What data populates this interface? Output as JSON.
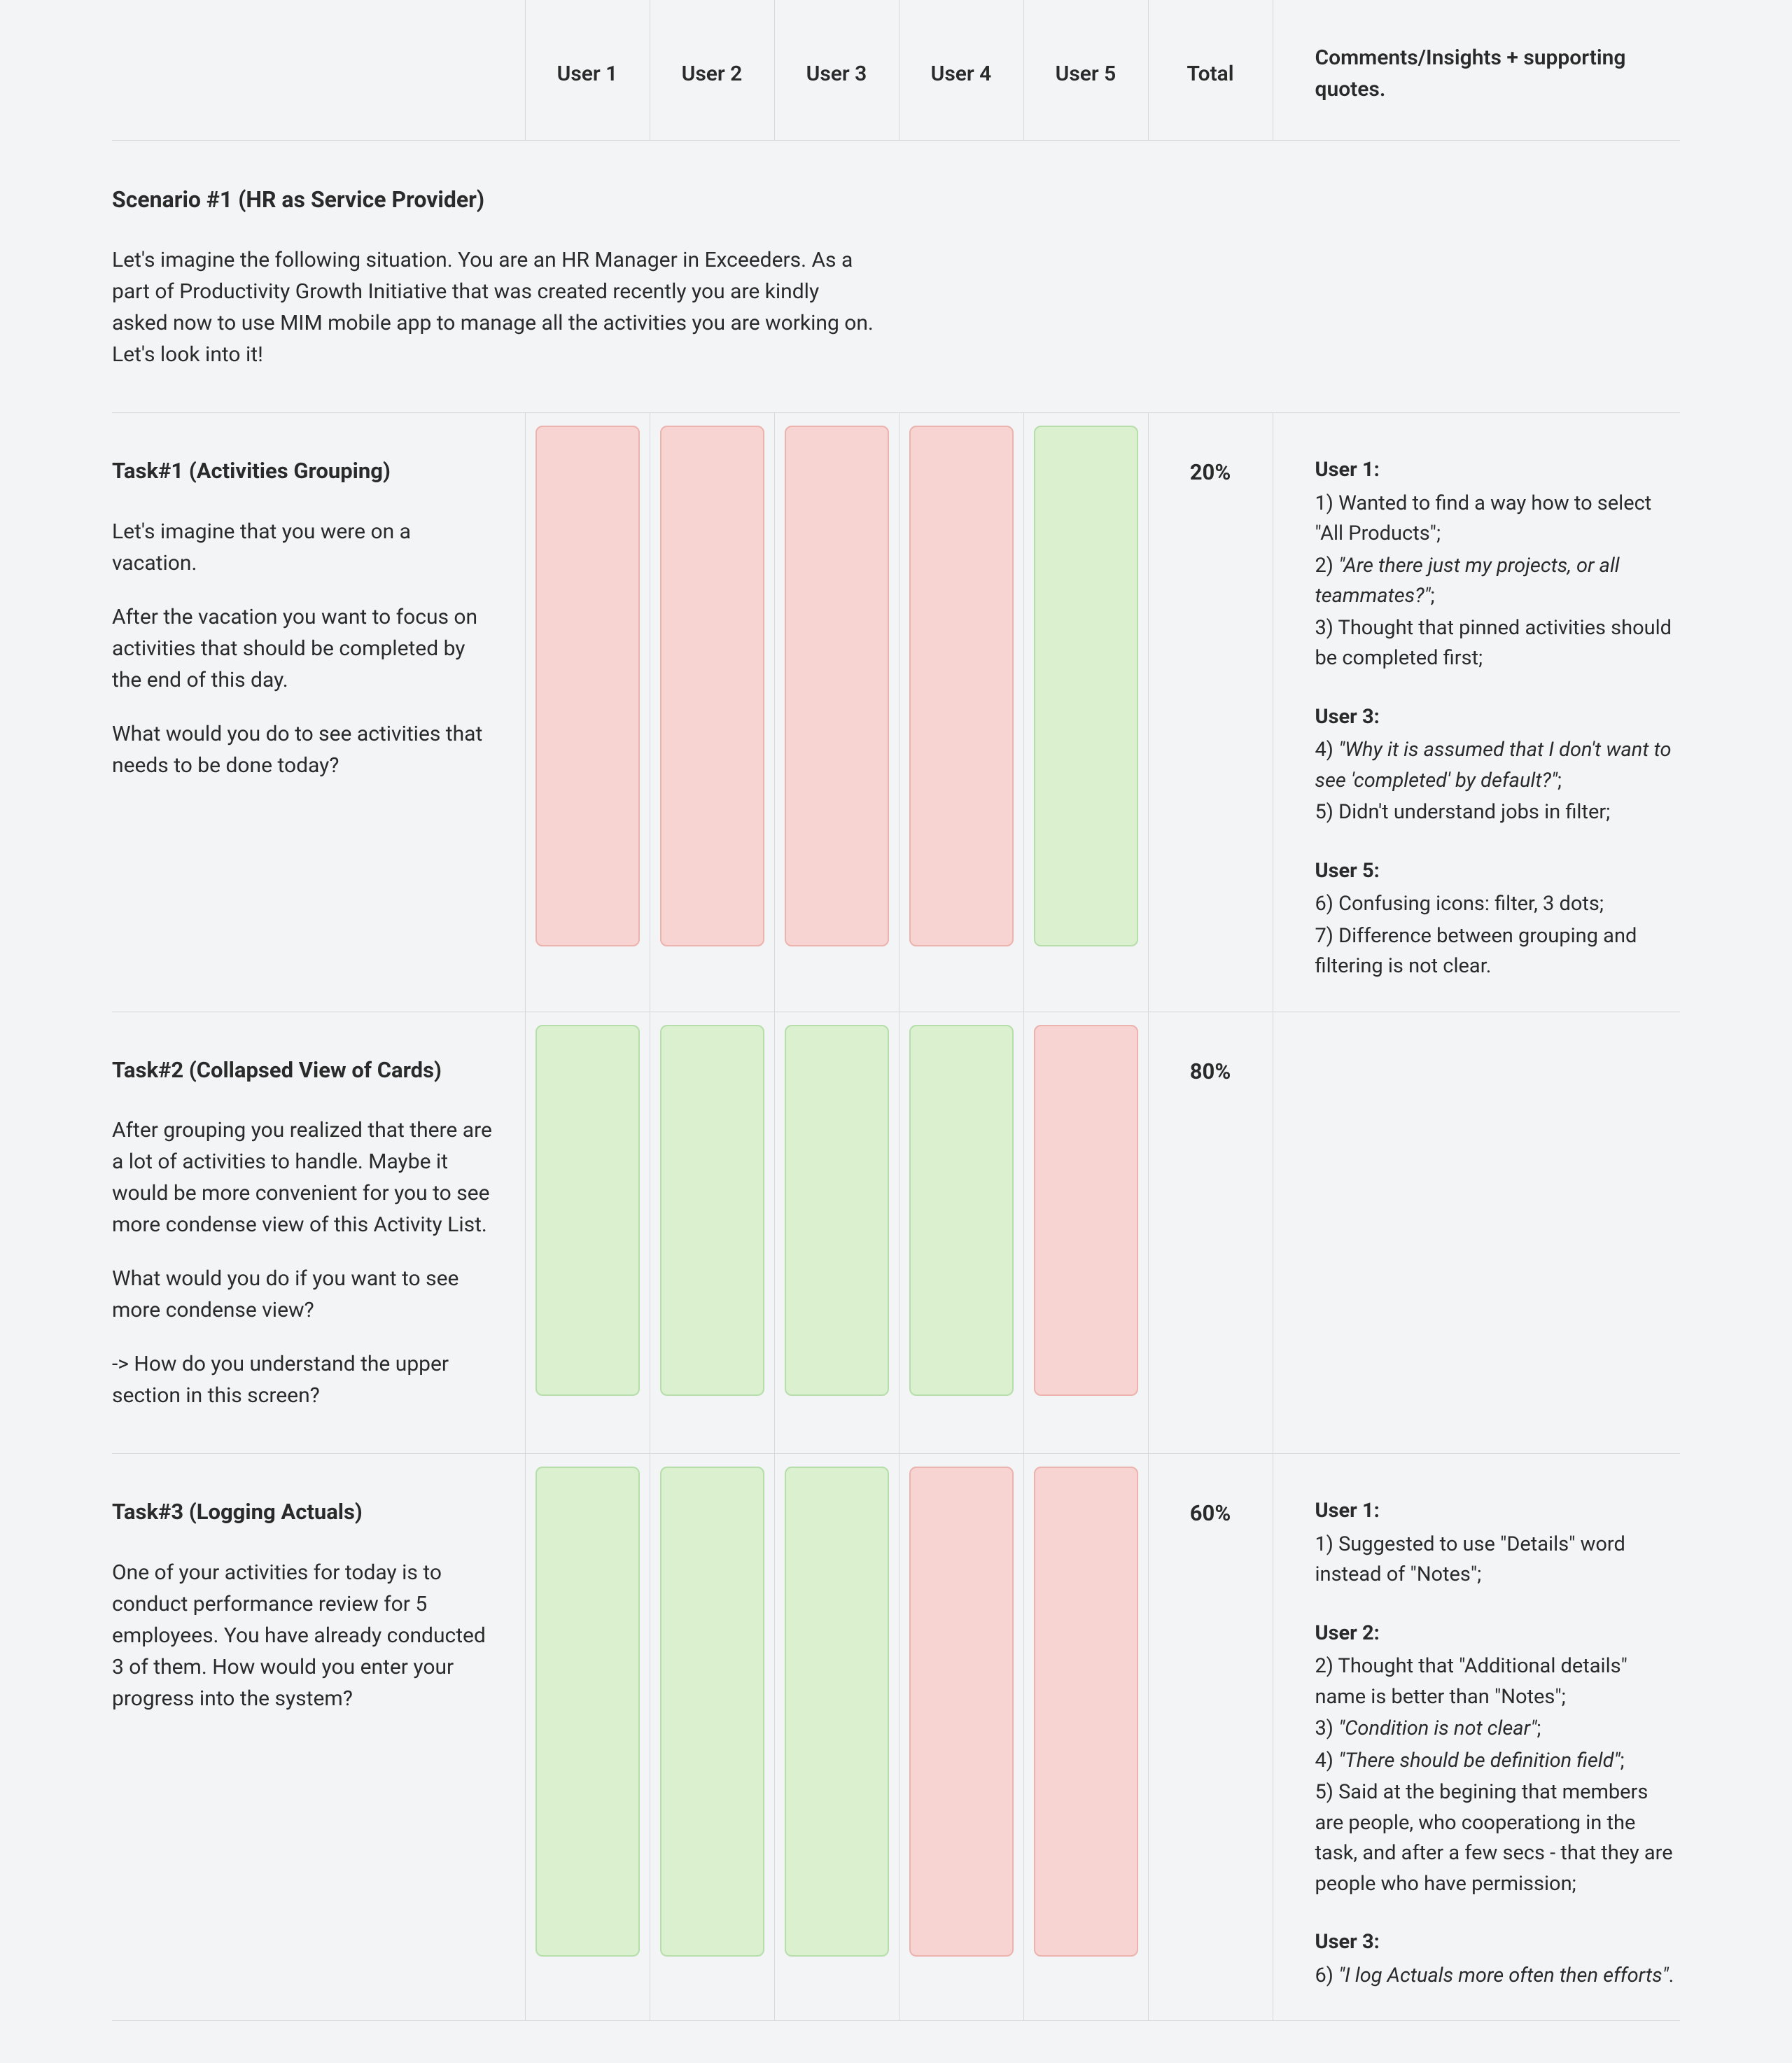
{
  "colors": {
    "page_bg": "#f3f4f5",
    "border": "#d7d8d9",
    "text": "#2a2a2a",
    "pass_fill": "#daf0cf",
    "pass_border": "#b6deaa",
    "fail_fill": "#f7d4d1",
    "fail_border": "#ecb2ad"
  },
  "header": {
    "users": [
      "User 1",
      "User 2",
      "User 3",
      "User 4",
      "User 5"
    ],
    "total_label": "Total",
    "comments_label": "Comments/Insights + supporting quotes."
  },
  "scenario": {
    "title": "Scenario #1 (HR as Service Provider)",
    "description": "Let's imagine the following situation. You are an HR Manager in Exceeders. As a part of Productivity Growth Initiative that was created recently you are kindly asked now to use MIM mobile app to manage all the activities you are working on. Let's look into it!"
  },
  "tasks": [
    {
      "title": "Task#1 (Activities Grouping)",
      "paragraphs": [
        "Let's imagine that you were on a vacation.",
        "After the vacation you want to focus on activities that should be completed by the end of this day.",
        "What would you do to see activities that needs to be done today?"
      ],
      "results": [
        "fail",
        "fail",
        "fail",
        "fail",
        "pass"
      ],
      "total": "20%",
      "swatch_height": 744,
      "notes": [
        {
          "user": "User 1:",
          "items": [
            {
              "t": "1) Wanted to find a way how to select \"All Products\";"
            },
            {
              "t": "2) ",
              "q": "\"Are there just my projects, or all teammates?\"",
              "after": ";"
            },
            {
              "t": "3) Thought that pinned activities should be completed first;"
            }
          ]
        },
        {
          "user": "User 3:",
          "items": [
            {
              "t": "4) ",
              "q": "\"Why it is assumed that I don't want to see 'completed' by default?\"",
              "after": ";"
            },
            {
              "t": "5) Didn't understand jobs in filter;"
            }
          ]
        },
        {
          "user": "User 5:",
          "items": [
            {
              "t": "6) Confusing icons: filter, 3 dots;"
            },
            {
              "t": "7) Difference between grouping and filtering is not clear."
            }
          ]
        }
      ]
    },
    {
      "title": "Task#2 (Collapsed View of Cards)",
      "paragraphs": [
        "After grouping you realized that there are a lot of activities to handle. Maybe it would be more convenient for you to see more condense view of this Activity List.",
        "What would you do if you want to see more condense view?",
        "-> How do you understand the upper section in this screen?"
      ],
      "results": [
        "pass",
        "pass",
        "pass",
        "pass",
        "fail"
      ],
      "total": "80%",
      "swatch_height": 530,
      "notes": []
    },
    {
      "title": "Task#3 (Logging Actuals)",
      "paragraphs": [
        "One of your activities for today is to conduct performance review for 5 employees. You have already conducted 3 of them. How would you enter your progress into the system?"
      ],
      "results": [
        "pass",
        "pass",
        "pass",
        "fail",
        "fail"
      ],
      "total": "60%",
      "swatch_height": 700,
      "notes": [
        {
          "user": "User 1:",
          "items": [
            {
              "t": "1) Suggested to use \"Details\" word instead of \"Notes\";"
            }
          ]
        },
        {
          "user": "User 2:",
          "items": [
            {
              "t": "2) Thought that \"Additional details\" name is better than \"Notes\";"
            },
            {
              "t": "3) ",
              "q": "\"Condition is not clear\"",
              "after": ";"
            },
            {
              "t": "4) ",
              "q": "\"There should be definition field\"",
              "after": ";"
            },
            {
              "t": "5) Said at the begining that members are people, who cooperationg in the task, and after a few secs - that they are people who have permission;"
            }
          ]
        },
        {
          "user": "User 3:",
          "items": [
            {
              "t": "6) ",
              "q": "\"I log Actuals more often then efforts\"",
              "after": "."
            }
          ]
        }
      ]
    }
  ]
}
